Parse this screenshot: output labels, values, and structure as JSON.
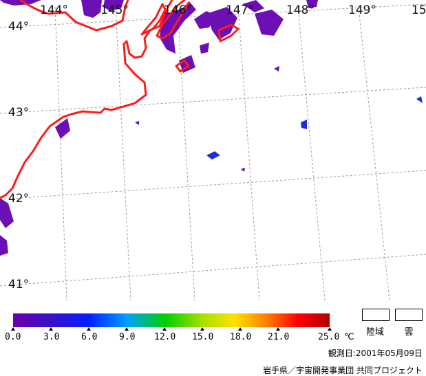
{
  "map": {
    "lon_labels": [
      "144°",
      "145°",
      "146°",
      "147°",
      "148°",
      "149°",
      "15"
    ],
    "lat_labels": [
      "44°",
      "43°",
      "42°",
      "41°"
    ]
  },
  "colorbar": {
    "ticks": [
      "0.0",
      "3.0",
      "6.0",
      "9.0",
      "12.0",
      "15.0",
      "18.0",
      "21.0",
      "25.0"
    ],
    "unit": "℃",
    "colors": [
      "#6a00a8",
      "#3a10c8",
      "#0020ff",
      "#00a0ff",
      "#00d000",
      "#a8e000",
      "#ffe000",
      "#ff8000",
      "#ff0000",
      "#b00000"
    ]
  },
  "legend": {
    "land_label": "陸域",
    "cloud_label": "雲"
  },
  "footer": {
    "date": "観測日:2001年05月09日",
    "credit": "岩手県／宇宙開発事業団 共同プロジェクト"
  },
  "colors": {
    "coastline": "#ff1a1a",
    "sst_low": "#6a10b4",
    "gridline": "#9a9a9a"
  }
}
